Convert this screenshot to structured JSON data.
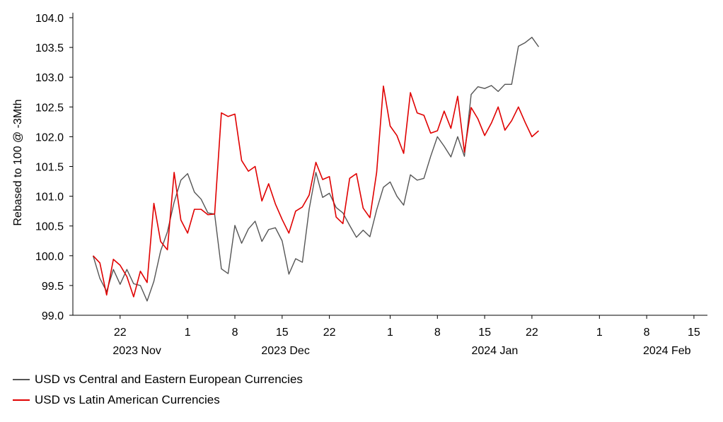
{
  "chart_data": {
    "type": "line",
    "title": "",
    "xlabel": "",
    "ylabel": "Rebased to 100 @ -3Mth",
    "ylim": [
      99.0,
      104.0
    ],
    "yticks": [
      "99.0",
      "99.5",
      "100.0",
      "100.5",
      "101.0",
      "101.5",
      "102.0",
      "102.5",
      "103.0",
      "103.5",
      "104.0"
    ],
    "x_start_index": -3,
    "x_end_index": 91,
    "x_ticks": [
      {
        "index": 4,
        "label": "22"
      },
      {
        "index": 14,
        "label": "1"
      },
      {
        "index": 21,
        "label": "8"
      },
      {
        "index": 28,
        "label": "15"
      },
      {
        "index": 35,
        "label": "22"
      },
      {
        "index": 44,
        "label": "1"
      },
      {
        "index": 51,
        "label": "8"
      },
      {
        "index": 58,
        "label": "15"
      },
      {
        "index": 65,
        "label": "22"
      },
      {
        "index": 75,
        "label": "1"
      },
      {
        "index": 82,
        "label": "8"
      },
      {
        "index": 89,
        "label": "15"
      }
    ],
    "x_month_labels": [
      {
        "index": 6.5,
        "label": "2023 Nov"
      },
      {
        "index": 28.5,
        "label": "2023 Dec"
      },
      {
        "index": 59.5,
        "label": "2024 Jan"
      },
      {
        "index": 85,
        "label": "2024 Feb"
      }
    ],
    "series": [
      {
        "name": "USD vs Central and Eastern European Currencies",
        "color": "#555555",
        "points": [
          [
            0,
            100.0
          ],
          [
            1,
            99.62
          ],
          [
            2,
            99.4
          ],
          [
            3,
            99.77
          ],
          [
            4,
            99.52
          ],
          [
            5,
            99.77
          ],
          [
            6,
            99.53
          ],
          [
            7,
            99.5
          ],
          [
            8,
            99.24
          ],
          [
            9,
            99.57
          ],
          [
            10,
            100.08
          ],
          [
            11,
            100.4
          ],
          [
            12,
            100.9
          ],
          [
            13,
            101.27
          ],
          [
            14,
            101.38
          ],
          [
            15,
            101.07
          ],
          [
            16,
            100.95
          ],
          [
            17,
            100.72
          ],
          [
            18,
            100.7
          ],
          [
            19,
            99.78
          ],
          [
            20,
            99.7
          ],
          [
            21,
            100.51
          ],
          [
            22,
            100.21
          ],
          [
            23,
            100.45
          ],
          [
            24,
            100.58
          ],
          [
            25,
            100.24
          ],
          [
            26,
            100.44
          ],
          [
            27,
            100.47
          ],
          [
            28,
            100.25
          ],
          [
            29,
            99.69
          ],
          [
            30,
            99.95
          ],
          [
            31,
            99.89
          ],
          [
            32,
            100.78
          ],
          [
            33,
            101.4
          ],
          [
            34,
            100.98
          ],
          [
            35,
            101.05
          ],
          [
            36,
            100.81
          ],
          [
            37,
            100.72
          ],
          [
            38,
            100.51
          ],
          [
            39,
            100.31
          ],
          [
            40,
            100.43
          ],
          [
            41,
            100.32
          ],
          [
            42,
            100.77
          ],
          [
            43,
            101.15
          ],
          [
            44,
            101.24
          ],
          [
            45,
            101.0
          ],
          [
            46,
            100.85
          ],
          [
            47,
            101.36
          ],
          [
            48,
            101.27
          ],
          [
            49,
            101.3
          ],
          [
            50,
            101.67
          ],
          [
            51,
            102.0
          ],
          [
            52,
            101.84
          ],
          [
            53,
            101.66
          ],
          [
            54,
            102.0
          ],
          [
            55,
            101.67
          ],
          [
            56,
            102.71
          ],
          [
            57,
            102.84
          ],
          [
            58,
            102.81
          ],
          [
            59,
            102.86
          ],
          [
            60,
            102.76
          ],
          [
            61,
            102.88
          ],
          [
            62,
            102.88
          ],
          [
            63,
            103.52
          ],
          [
            64,
            103.58
          ],
          [
            65,
            103.67
          ],
          [
            66,
            103.51
          ]
        ]
      },
      {
        "name": "USD vs Latin American Currencies",
        "color": "#e00000",
        "points": [
          [
            0,
            100.0
          ],
          [
            1,
            99.88
          ],
          [
            2,
            99.34
          ],
          [
            3,
            99.94
          ],
          [
            4,
            99.84
          ],
          [
            5,
            99.65
          ],
          [
            6,
            99.31
          ],
          [
            7,
            99.74
          ],
          [
            8,
            99.55
          ],
          [
            9,
            100.88
          ],
          [
            10,
            100.24
          ],
          [
            11,
            100.1
          ],
          [
            12,
            101.4
          ],
          [
            13,
            100.6
          ],
          [
            14,
            100.38
          ],
          [
            15,
            100.78
          ],
          [
            16,
            100.78
          ],
          [
            17,
            100.69
          ],
          [
            18,
            100.7
          ],
          [
            19,
            102.4
          ],
          [
            20,
            102.34
          ],
          [
            21,
            102.38
          ],
          [
            22,
            101.6
          ],
          [
            23,
            101.42
          ],
          [
            24,
            101.5
          ],
          [
            25,
            100.92
          ],
          [
            26,
            101.21
          ],
          [
            27,
            100.87
          ],
          [
            28,
            100.61
          ],
          [
            29,
            100.38
          ],
          [
            30,
            100.75
          ],
          [
            31,
            100.82
          ],
          [
            32,
            101.02
          ],
          [
            33,
            101.57
          ],
          [
            34,
            101.28
          ],
          [
            35,
            101.33
          ],
          [
            36,
            100.65
          ],
          [
            37,
            100.54
          ],
          [
            38,
            101.3
          ],
          [
            39,
            101.38
          ],
          [
            40,
            100.8
          ],
          [
            41,
            100.64
          ],
          [
            42,
            101.4
          ],
          [
            43,
            102.85
          ],
          [
            44,
            102.18
          ],
          [
            45,
            102.02
          ],
          [
            46,
            101.72
          ],
          [
            47,
            102.74
          ],
          [
            48,
            102.4
          ],
          [
            49,
            102.36
          ],
          [
            50,
            102.06
          ],
          [
            51,
            102.1
          ],
          [
            52,
            102.43
          ],
          [
            53,
            102.14
          ],
          [
            54,
            102.68
          ],
          [
            55,
            101.74
          ],
          [
            56,
            102.49
          ],
          [
            57,
            102.3
          ],
          [
            58,
            102.02
          ],
          [
            59,
            102.23
          ],
          [
            60,
            102.5
          ],
          [
            61,
            102.11
          ],
          [
            62,
            102.27
          ],
          [
            63,
            102.5
          ],
          [
            64,
            102.24
          ],
          [
            65,
            102.0
          ],
          [
            66,
            102.1
          ]
        ]
      }
    ],
    "legend": [
      "USD vs Central and Eastern European Currencies",
      "USD vs Latin American Currencies"
    ],
    "legend_position": "bottom-left",
    "grid": false
  }
}
